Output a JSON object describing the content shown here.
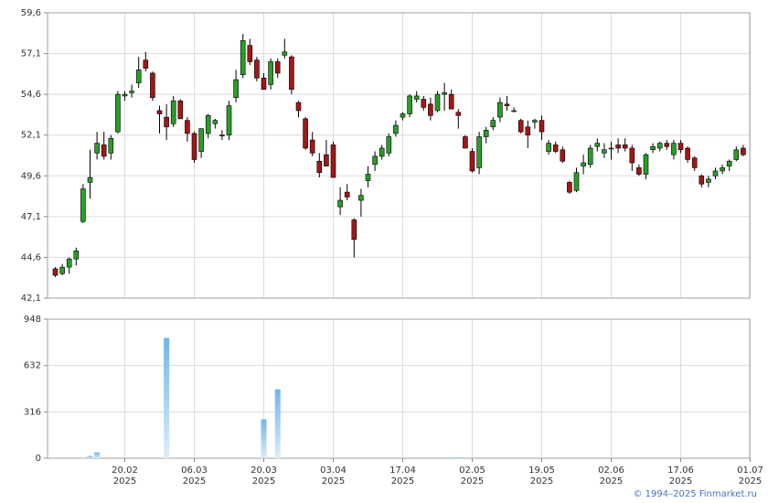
{
  "chart_data": [
    {
      "type": "candlestick",
      "title": "",
      "ylim": [
        42.1,
        59.6
      ],
      "ytick_labels": [
        "42,1",
        "44,6",
        "47,1",
        "49,6",
        "52,1",
        "54,6",
        "57,1",
        "59,6"
      ],
      "ytick_values": [
        42.1,
        44.6,
        47.1,
        49.6,
        52.1,
        54.6,
        57.1,
        59.6
      ],
      "up_color": "#2a9d2a",
      "down_color": "#a01818",
      "candles": [
        [
          43.9,
          44.0,
          43.4,
          43.5
        ],
        [
          43.6,
          44.2,
          43.5,
          44.0
        ],
        [
          44.0,
          44.6,
          43.6,
          44.5
        ],
        [
          44.5,
          45.2,
          44.1,
          45.0
        ],
        [
          46.8,
          49.1,
          46.7,
          48.8
        ],
        [
          49.2,
          51.2,
          48.2,
          49.5
        ],
        [
          51.0,
          52.3,
          50.6,
          51.6
        ],
        [
          51.5,
          52.3,
          50.6,
          50.8
        ],
        [
          51.0,
          52.1,
          50.6,
          51.9
        ],
        [
          52.3,
          54.8,
          52.2,
          54.6
        ],
        [
          54.5,
          54.8,
          54.2,
          54.6
        ],
        [
          54.7,
          55.2,
          54.4,
          54.8
        ],
        [
          55.3,
          56.9,
          55.0,
          56.1
        ],
        [
          56.7,
          57.2,
          56.0,
          56.2
        ],
        [
          55.9,
          56.0,
          54.2,
          54.4
        ],
        [
          53.6,
          53.9,
          52.2,
          53.4
        ],
        [
          53.2,
          54.0,
          51.8,
          52.6
        ],
        [
          52.8,
          54.5,
          52.6,
          54.2
        ],
        [
          54.2,
          54.3,
          53.1,
          53.1
        ],
        [
          53.0,
          53.2,
          51.7,
          52.2
        ],
        [
          52.2,
          52.3,
          50.4,
          50.6
        ],
        [
          51.1,
          52.5,
          50.7,
          52.5
        ],
        [
          52.2,
          53.4,
          51.9,
          53.3
        ],
        [
          52.8,
          53.1,
          52.5,
          53.0
        ],
        [
          52.1,
          52.4,
          51.8,
          52.1
        ],
        [
          52.1,
          54.2,
          51.8,
          53.9
        ],
        [
          54.4,
          56.1,
          54.1,
          55.5
        ],
        [
          55.8,
          58.3,
          55.6,
          57.9
        ],
        [
          57.6,
          58.0,
          56.4,
          56.6
        ],
        [
          56.7,
          56.9,
          55.4,
          55.6
        ],
        [
          55.6,
          55.9,
          54.9,
          54.9
        ],
        [
          55.2,
          56.8,
          54.9,
          56.6
        ],
        [
          56.6,
          56.8,
          55.6,
          55.9
        ],
        [
          57.0,
          58.0,
          56.8,
          57.2
        ],
        [
          56.9,
          57.0,
          54.6,
          54.9
        ],
        [
          54.1,
          54.2,
          53.2,
          53.6
        ],
        [
          53.1,
          53.2,
          51.2,
          51.3
        ],
        [
          51.8,
          52.3,
          50.8,
          51.0
        ],
        [
          50.5,
          51.0,
          49.5,
          49.8
        ],
        [
          50.9,
          51.8,
          50.3,
          50.2
        ],
        [
          51.5,
          51.7,
          49.5,
          49.5
        ],
        [
          47.7,
          48.9,
          47.2,
          48.1
        ],
        [
          48.6,
          49.1,
          48.1,
          48.3
        ],
        [
          46.9,
          47.0,
          44.6,
          45.7
        ],
        [
          48.1,
          48.8,
          47.1,
          48.4
        ],
        [
          49.3,
          50.2,
          48.9,
          49.7
        ],
        [
          50.3,
          51.1,
          49.9,
          50.8
        ],
        [
          50.8,
          51.5,
          50.6,
          51.3
        ],
        [
          51.0,
          52.2,
          50.8,
          52.0
        ],
        [
          52.2,
          53.0,
          52.0,
          52.7
        ],
        [
          53.2,
          53.5,
          53.0,
          53.4
        ],
        [
          53.4,
          54.6,
          53.2,
          54.5
        ],
        [
          54.3,
          54.8,
          54.1,
          54.5
        ],
        [
          54.3,
          54.5,
          53.6,
          53.8
        ],
        [
          54.0,
          54.4,
          53.0,
          53.3
        ],
        [
          53.6,
          54.8,
          53.5,
          54.6
        ],
        [
          54.6,
          55.3,
          53.6,
          54.7
        ],
        [
          54.6,
          54.9,
          53.8,
          53.7
        ],
        [
          53.5,
          53.7,
          52.5,
          53.3
        ],
        [
          52.0,
          52.1,
          51.3,
          51.3
        ],
        [
          51.1,
          51.3,
          49.8,
          49.9
        ],
        [
          50.1,
          52.3,
          49.7,
          52.0
        ],
        [
          52.0,
          52.6,
          51.6,
          52.4
        ],
        [
          52.6,
          53.2,
          52.4,
          53.0
        ],
        [
          53.2,
          54.4,
          52.9,
          54.1
        ],
        [
          54.0,
          54.5,
          53.6,
          53.9
        ],
        [
          53.6,
          53.8,
          53.5,
          53.6
        ],
        [
          53.0,
          53.1,
          52.2,
          52.3
        ],
        [
          52.6,
          53.0,
          51.3,
          52.1
        ],
        [
          52.9,
          53.1,
          52.5,
          53.0
        ],
        [
          53.0,
          53.3,
          51.8,
          52.3
        ],
        [
          51.1,
          51.8,
          50.9,
          51.6
        ],
        [
          51.5,
          51.7,
          51.0,
          51.1
        ],
        [
          51.2,
          51.4,
          50.4,
          50.5
        ],
        [
          49.2,
          49.3,
          48.5,
          48.6
        ],
        [
          48.7,
          50.1,
          48.6,
          49.8
        ],
        [
          50.2,
          50.9,
          49.7,
          50.4
        ],
        [
          50.3,
          51.5,
          50.1,
          51.3
        ],
        [
          51.4,
          51.9,
          51.1,
          51.6
        ],
        [
          51.0,
          51.6,
          50.7,
          51.2
        ],
        [
          51.3,
          51.7,
          50.6,
          51.3
        ],
        [
          51.5,
          51.9,
          51.0,
          51.3
        ],
        [
          51.5,
          51.9,
          51.1,
          51.3
        ],
        [
          51.3,
          51.5,
          49.9,
          50.4
        ],
        [
          50.1,
          50.3,
          49.6,
          49.7
        ],
        [
          49.7,
          51.0,
          49.4,
          50.9
        ],
        [
          51.2,
          51.6,
          51.0,
          51.4
        ],
        [
          51.3,
          51.7,
          51.1,
          51.6
        ],
        [
          51.6,
          51.8,
          51.2,
          51.4
        ],
        [
          50.9,
          51.8,
          50.6,
          51.6
        ],
        [
          51.6,
          51.8,
          51.0,
          51.2
        ],
        [
          51.3,
          51.4,
          50.4,
          50.6
        ],
        [
          50.7,
          50.8,
          49.9,
          50.1
        ],
        [
          49.6,
          49.7,
          48.9,
          49.1
        ],
        [
          49.2,
          49.6,
          48.9,
          49.4
        ],
        [
          49.6,
          50.1,
          49.4,
          49.9
        ],
        [
          49.9,
          50.3,
          49.7,
          50.1
        ],
        [
          50.2,
          50.6,
          49.9,
          50.5
        ],
        [
          50.6,
          51.4,
          50.5,
          51.2
        ],
        [
          51.3,
          51.5,
          50.8,
          50.9
        ]
      ]
    },
    {
      "type": "bar",
      "title": "",
      "ylim": [
        0,
        948
      ],
      "ytick_labels": [
        "0",
        "316",
        "632",
        "948"
      ],
      "ytick_values": [
        0,
        316,
        632,
        948
      ],
      "bar_color": "#6fb6ea",
      "bars": [
        {
          "index": 5,
          "value": 15
        },
        {
          "index": 6,
          "value": 40
        },
        {
          "index": 16,
          "value": 820
        },
        {
          "index": 30,
          "value": 265
        },
        {
          "index": 32,
          "value": 470
        },
        {
          "index": 58,
          "value": 6
        }
      ]
    }
  ],
  "x_axis": {
    "ticks": [
      {
        "index": 10,
        "label": "20.02",
        "year": "2025"
      },
      {
        "index": 20,
        "label": "06.03",
        "year": "2025"
      },
      {
        "index": 30,
        "label": "20.03",
        "year": "2025"
      },
      {
        "index": 40,
        "label": "03.04",
        "year": "2025"
      },
      {
        "index": 50,
        "label": "17.04",
        "year": "2025"
      },
      {
        "index": 60,
        "label": "02.05",
        "year": "2025"
      },
      {
        "index": 70,
        "label": "19.05",
        "year": "2025"
      },
      {
        "index": 80,
        "label": "02.06",
        "year": "2025"
      },
      {
        "index": 90,
        "label": "17.06",
        "year": "2025"
      },
      {
        "index": 100,
        "label": "01.07",
        "year": "2025"
      }
    ]
  },
  "credit": "© 1994–2025 Finmarket.ru"
}
